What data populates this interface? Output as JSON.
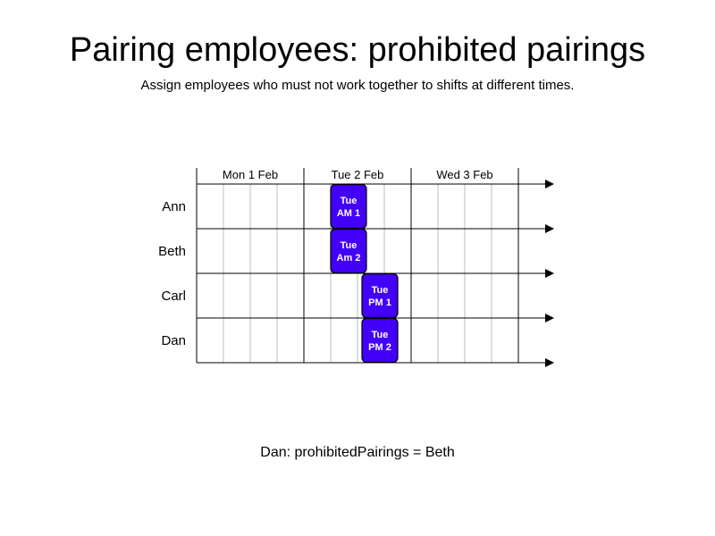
{
  "header": {
    "title": "Pairing employees: prohibited pairings",
    "subtitle": "Assign employees who must not work together to shifts at different times."
  },
  "days": [
    {
      "label": "Mon 1 Feb"
    },
    {
      "label": "Tue 2 Feb"
    },
    {
      "label": "Wed 3 Feb"
    }
  ],
  "employees": [
    {
      "name": "Ann"
    },
    {
      "name": "Beth"
    },
    {
      "name": "Carl"
    },
    {
      "name": "Dan"
    }
  ],
  "shifts": [
    {
      "employee": "Ann",
      "day": "Tue 2 Feb",
      "start_hour": 6,
      "end_hour": 14,
      "line1": "Tue",
      "line2": "AM 1"
    },
    {
      "employee": "Beth",
      "day": "Tue 2 Feb",
      "start_hour": 6,
      "end_hour": 14,
      "line1": "Tue",
      "line2": "Am 2"
    },
    {
      "employee": "Carl",
      "day": "Tue 2 Feb",
      "start_hour": 13,
      "end_hour": 21,
      "line1": "Tue",
      "line2": "PM 1"
    },
    {
      "employee": "Dan",
      "day": "Tue 2 Feb",
      "start_hour": 13,
      "end_hour": 21,
      "line1": "Tue",
      "line2": "PM 2"
    }
  ],
  "colors": {
    "shift_fill": "#4200f7",
    "shift_stroke": "#000000",
    "grid_major": "#000000",
    "grid_minor": "#bdbdbd"
  },
  "footnote": "Dan: prohibitedPairings = Beth"
}
